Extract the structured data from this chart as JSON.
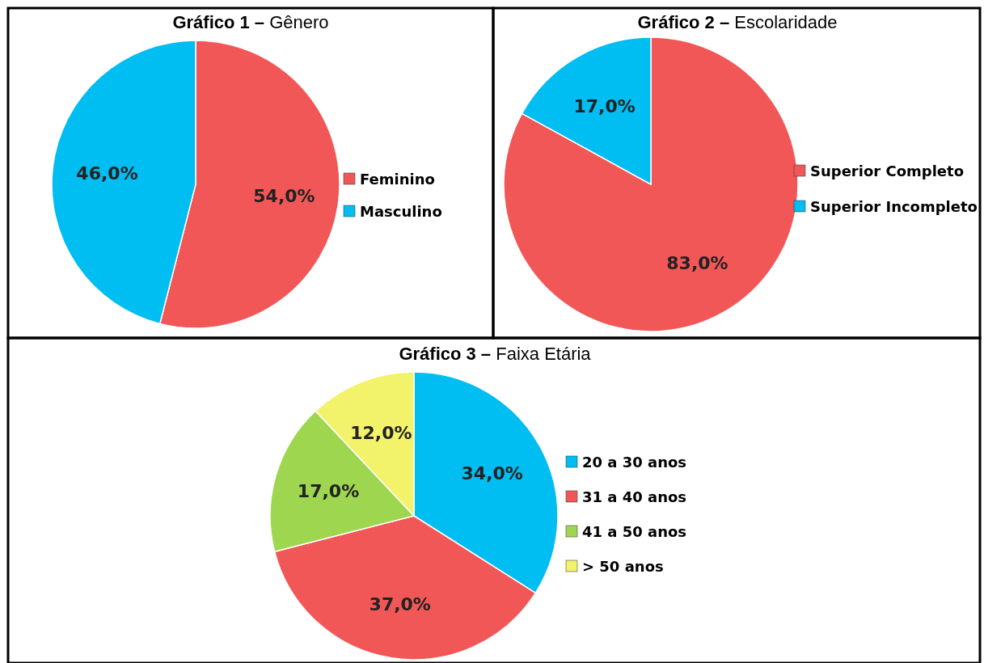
{
  "chart_data": [
    {
      "type": "pie",
      "title": "Gráfico 1 – Gênero",
      "categories": [
        "Feminino",
        "Masculino"
      ],
      "values": [
        54,
        46
      ],
      "colors": [
        "#f25757",
        "#00bdf2"
      ],
      "value_labels": [
        "54,0%",
        "46,0%"
      ],
      "legend": "right"
    },
    {
      "type": "pie",
      "title": "Gráfico 2 – Escolaridade",
      "categories": [
        "Superior Completo",
        "Superior Incompleto"
      ],
      "values": [
        83,
        17
      ],
      "colors": [
        "#f25757",
        "#00bdf2"
      ],
      "value_labels": [
        "83,0%",
        "17,0%"
      ],
      "legend": "right"
    },
    {
      "type": "pie",
      "title": "Gráfico 3 – Faixa Etária",
      "categories": [
        "20 a 30 anos",
        "31 a 40 anos",
        "41 a 50 anos",
        "> 50 anos"
      ],
      "values": [
        34,
        37,
        17,
        12
      ],
      "colors": [
        "#00bdf2",
        "#f25757",
        "#9ed650",
        "#f2f26b"
      ],
      "value_labels": [
        "34,0%",
        "37,0%",
        "17,0%",
        "12,0%"
      ],
      "legend": "right"
    }
  ]
}
